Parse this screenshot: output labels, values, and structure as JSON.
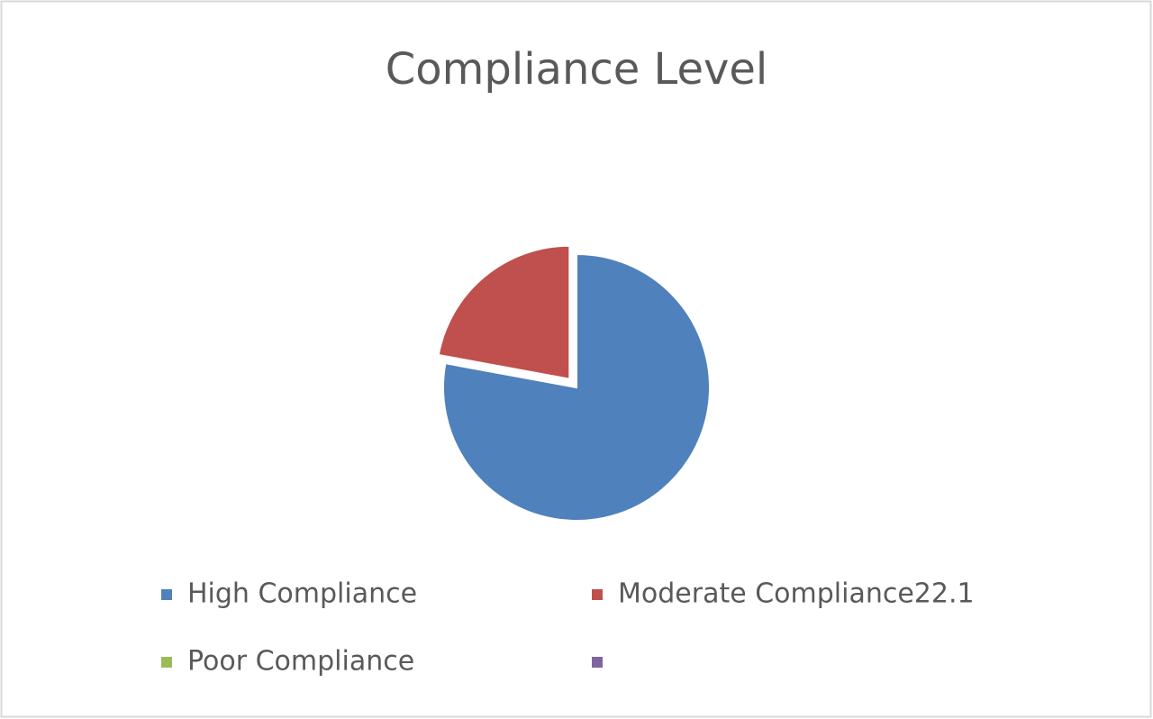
{
  "chart_data": {
    "type": "pie",
    "title": "Compliance Level",
    "categories": [
      "High Compliance",
      "Moderate Compliance22.1",
      "Poor Compliance",
      null
    ],
    "values": [
      77.9,
      22.1,
      0,
      0
    ],
    "colors": [
      "#4f81bd",
      "#c0504d",
      "#9bbb59",
      "#8064a2"
    ],
    "legend": "bottom"
  }
}
